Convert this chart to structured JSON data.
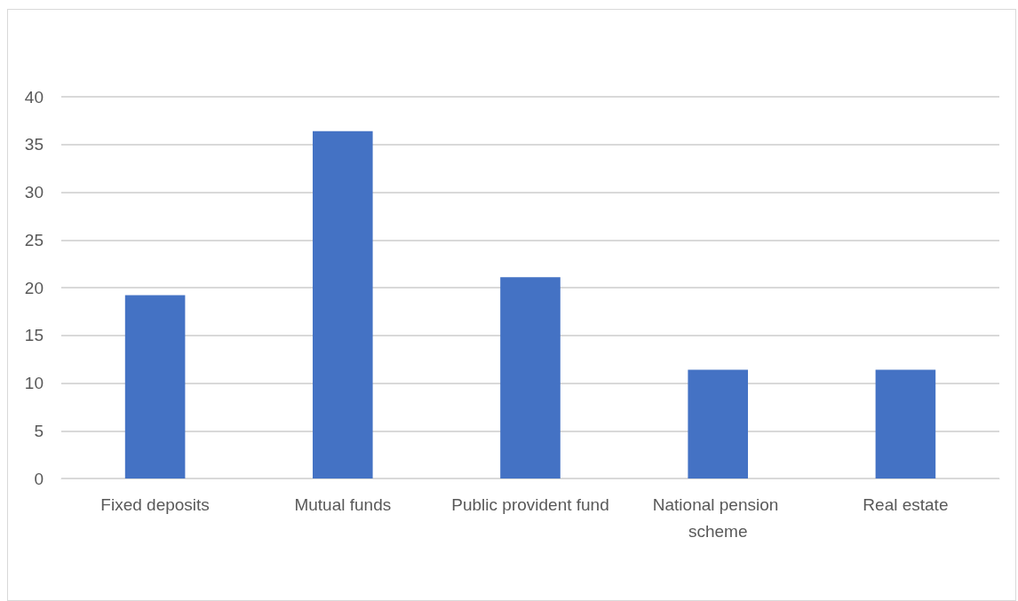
{
  "chart_data": {
    "type": "bar",
    "categories": [
      "Fixed deposits",
      "Mutual funds",
      "Public provident fund",
      "National pension scheme",
      "Real estate"
    ],
    "values": [
      19.2,
      36.4,
      21.1,
      11.4,
      11.4
    ],
    "color": "#4472c4",
    "ylim": [
      0,
      40
    ],
    "yticks": [
      0,
      5,
      10,
      15,
      20,
      25,
      30,
      35,
      40
    ],
    "grid": "y"
  }
}
